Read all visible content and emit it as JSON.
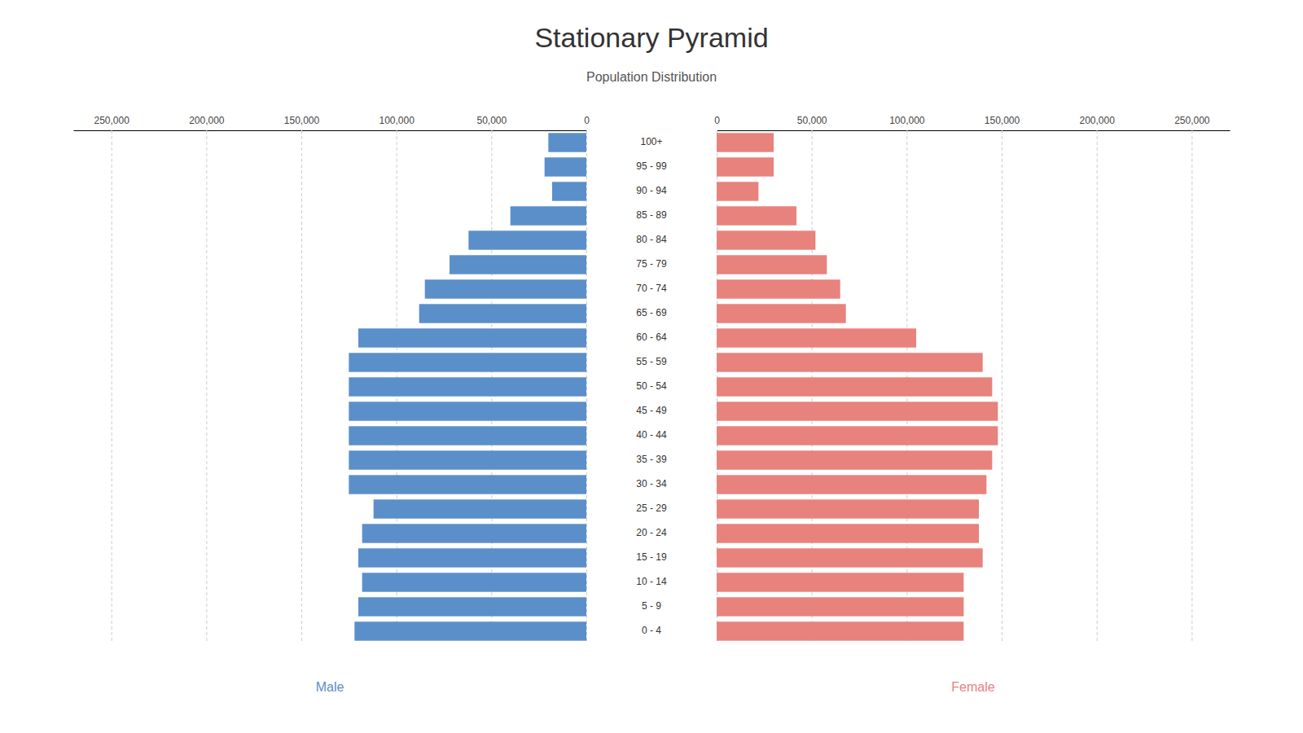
{
  "chart_data": {
    "type": "pyramid",
    "orientation": "horizontal",
    "title": "Stationary Pyramid",
    "subtitle": "Population Distribution",
    "categories": [
      "100+",
      "95 - 99",
      "90 - 94",
      "85 - 89",
      "80 - 84",
      "75 - 79",
      "70 - 74",
      "65 - 69",
      "60 - 64",
      "55 - 59",
      "50 - 54",
      "45 - 49",
      "40 - 44",
      "35 - 39",
      "30 - 34",
      "25 - 29",
      "20 - 24",
      "15 - 19",
      "10 - 14",
      "5 - 9",
      "0 - 4"
    ],
    "series": [
      {
        "name": "Male",
        "color": "#5b8fc9",
        "values": [
          20000,
          22000,
          18000,
          40000,
          62000,
          72000,
          85000,
          88000,
          120000,
          125000,
          125000,
          125000,
          125000,
          125000,
          125000,
          112000,
          118000,
          120000,
          118000,
          120000,
          122000
        ]
      },
      {
        "name": "Female",
        "color": "#e8827c",
        "values": [
          30000,
          30000,
          22000,
          42000,
          52000,
          58000,
          65000,
          68000,
          105000,
          140000,
          145000,
          148000,
          148000,
          145000,
          142000,
          138000,
          138000,
          140000,
          130000,
          130000,
          130000
        ]
      }
    ],
    "xlim": [
      0,
      270000
    ],
    "xticks": [
      0,
      {
        "value": 50000,
        "label": "50,000"
      },
      {
        "value": 100000,
        "label": "100,000"
      },
      {
        "value": 150000,
        "label": "150,000"
      },
      {
        "value": 200000,
        "label": "200,000"
      },
      {
        "value": 250000,
        "label": "250,000"
      }
    ],
    "grid": true,
    "legend": "bottom"
  }
}
